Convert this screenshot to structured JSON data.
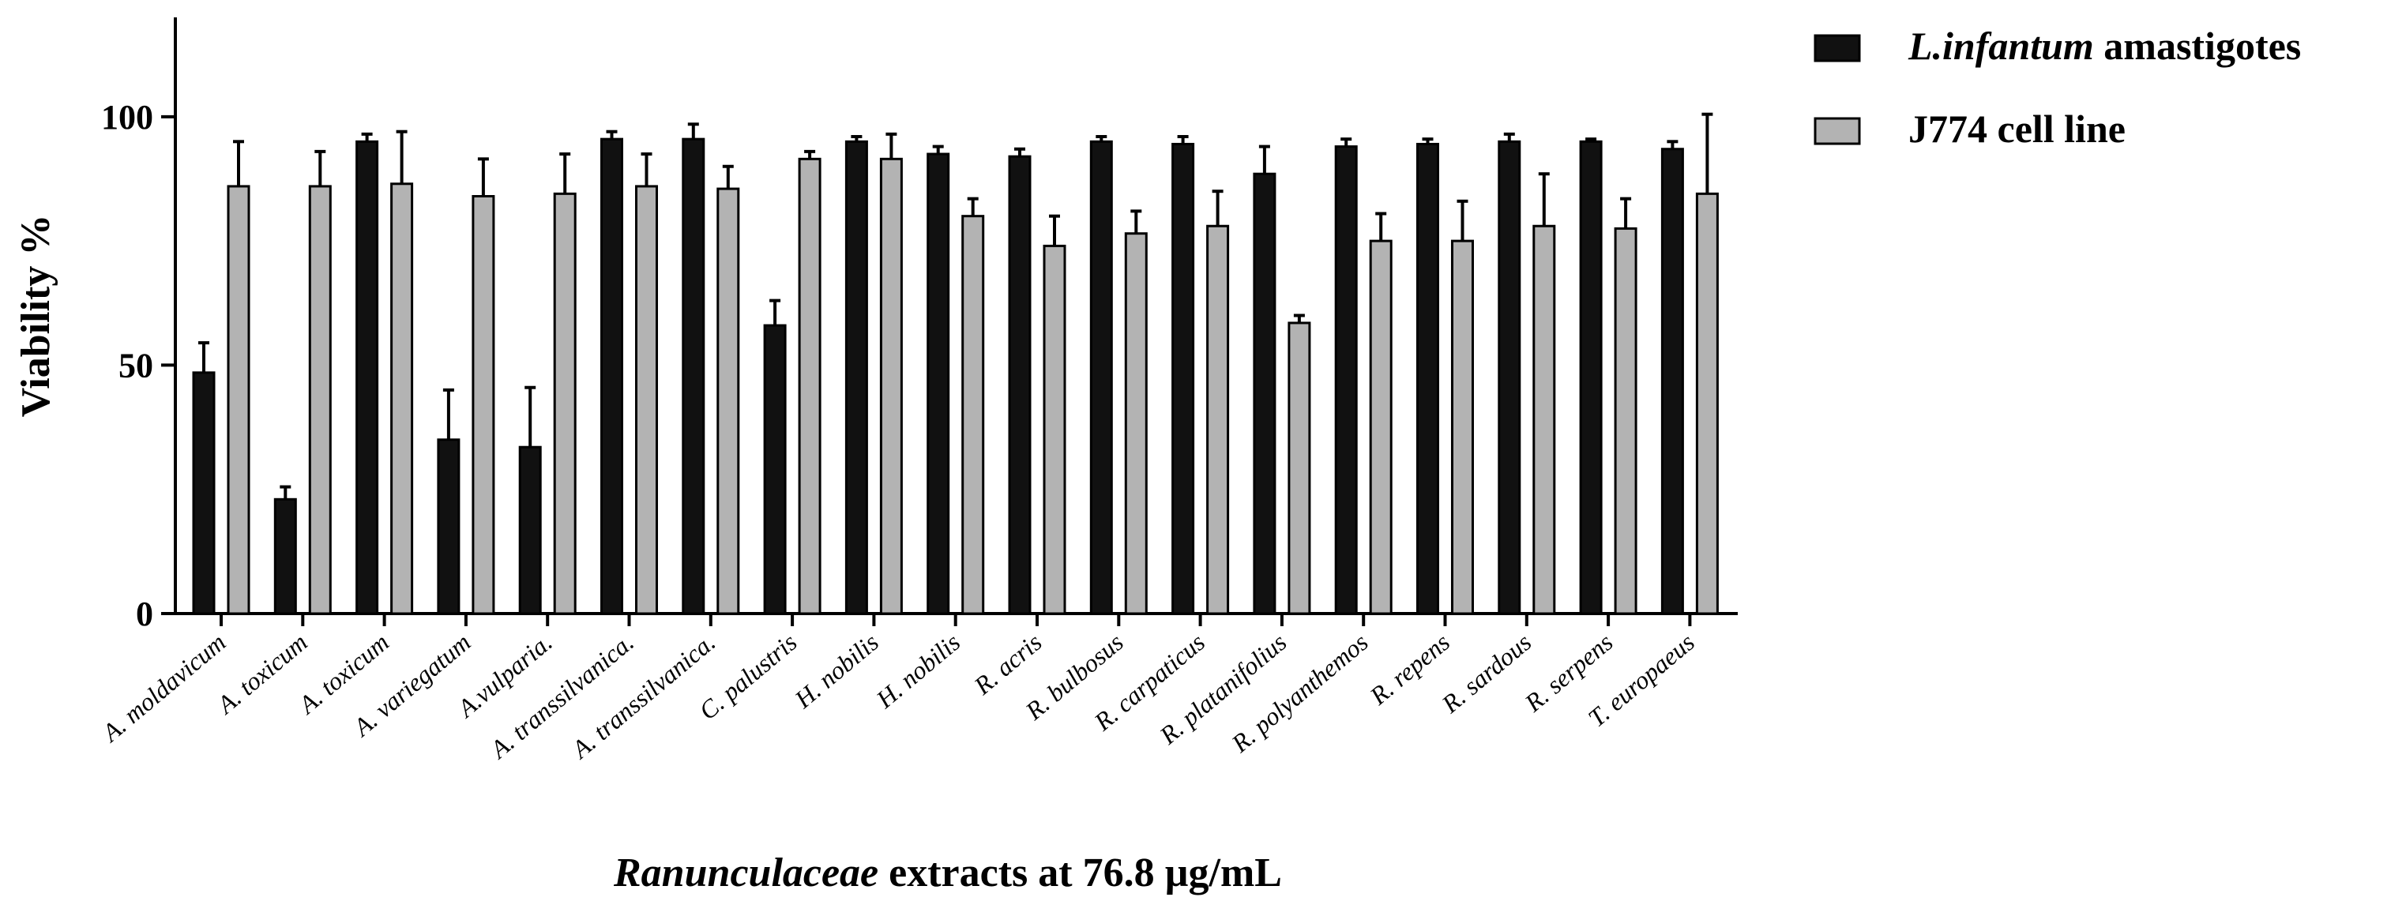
{
  "chart_data": {
    "type": "bar",
    "title": "",
    "xlabel_italic": "Ranunculaceae",
    "xlabel_rest": " extracts at 76.8 µg/mL",
    "ylabel": "Viability %",
    "ylim": [
      0,
      120
    ],
    "yticks": [
      0,
      50,
      100
    ],
    "grid": false,
    "legend_position": "top-right",
    "categories": [
      "A. moldavicum",
      "A. toxicum",
      "A. toxicum",
      "A. variegatum",
      "A.vulparia.",
      "A. transsilvanica.",
      "A. transsilvanica.",
      "C. palustris",
      "H. nobilis",
      "H. nobilis",
      "R. acris",
      "R. bulbosus",
      "R. carpaticus",
      "R. platanifolius",
      "R. polyanthemos",
      "R. repens",
      "R. sardous",
      "R. serpens",
      "T. europaeus"
    ],
    "series": [
      {
        "name_italic": "L.infantum",
        "name_rest": " amastigotes",
        "color": "#111111",
        "values": [
          48.5,
          23,
          95,
          35,
          33.5,
          95.5,
          95.5,
          58,
          95,
          92.5,
          92,
          95,
          94.5,
          88.5,
          94,
          94.5,
          95,
          95,
          93.5
        ],
        "errors": [
          6,
          2.5,
          1.5,
          10,
          12,
          1.5,
          3,
          5,
          1,
          1.5,
          1.5,
          1,
          1.5,
          5.5,
          1.5,
          1,
          1.5,
          0.5,
          1.5
        ]
      },
      {
        "name_italic": "",
        "name_rest": "J774 cell line",
        "color": "#b3b3b3",
        "values": [
          86,
          86,
          86.5,
          84,
          84.5,
          86,
          85.5,
          91.5,
          91.5,
          80,
          74,
          76.5,
          78,
          58.5,
          75,
          75,
          78,
          77.5,
          84.5
        ],
        "errors": [
          9,
          7,
          10.5,
          7.5,
          8,
          6.5,
          4.5,
          1.5,
          5,
          3.5,
          6,
          4.5,
          7,
          1.5,
          5.5,
          8,
          10.5,
          6,
          16
        ]
      }
    ]
  }
}
